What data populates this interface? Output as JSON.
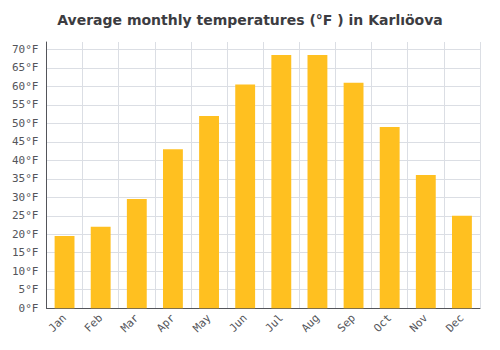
{
  "chart_data": {
    "type": "bar",
    "title": "Average monthly temperatures (°F ) in Karlıöova",
    "categories": [
      "Jan",
      "Feb",
      "Mar",
      "Apr",
      "May",
      "Jun",
      "Jul",
      "Aug",
      "Sep",
      "Oct",
      "Nov",
      "Dec"
    ],
    "values": [
      19.5,
      22,
      29.5,
      43,
      52,
      60.5,
      68.5,
      68.5,
      61,
      49,
      36,
      25
    ],
    "color": "#FFC020",
    "ylim": [
      0,
      72
    ],
    "yticks": [
      {
        "value": 0,
        "label": "0°F"
      },
      {
        "value": 5,
        "label": "5°F"
      },
      {
        "value": 10,
        "label": "10°F"
      },
      {
        "value": 15,
        "label": "15°F"
      },
      {
        "value": 20,
        "label": "20°F"
      },
      {
        "value": 25,
        "label": "25°F"
      },
      {
        "value": 30,
        "label": "30°F"
      },
      {
        "value": 35,
        "label": "35°F"
      },
      {
        "value": 40,
        "label": "40°F"
      },
      {
        "value": 45,
        "label": "45°F"
      },
      {
        "value": 50,
        "label": "50°F"
      },
      {
        "value": 55,
        "label": "55°F"
      },
      {
        "value": 60,
        "label": "60°F"
      },
      {
        "value": 65,
        "label": "65°F"
      },
      {
        "value": 70,
        "label": "70°F"
      }
    ],
    "grid": true
  }
}
